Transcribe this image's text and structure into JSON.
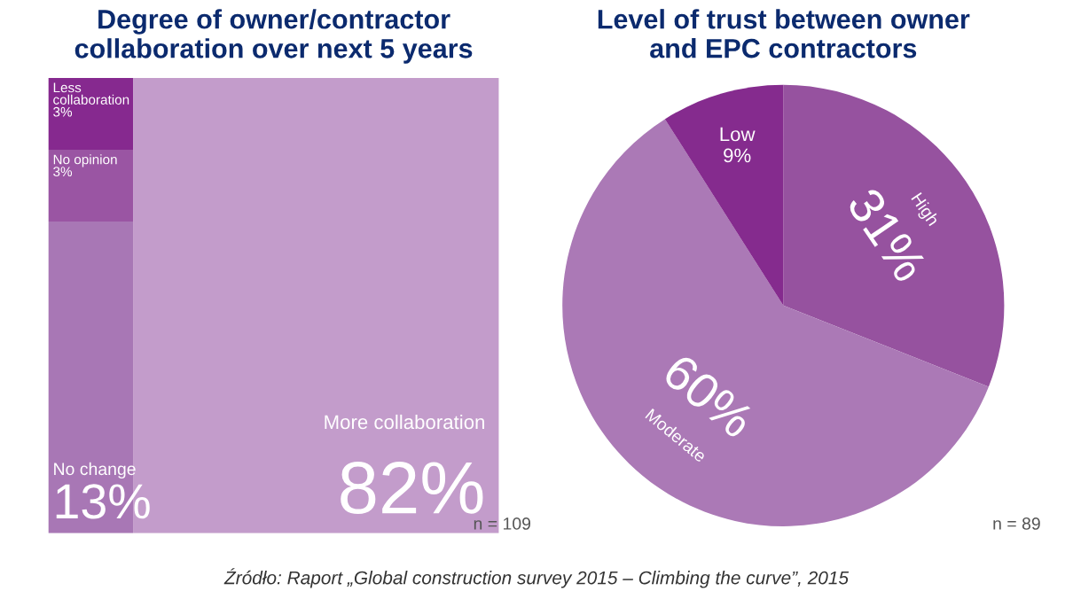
{
  "chart_data": [
    {
      "type": "other",
      "title": "Degree of owner/contractor\ncollaboration over next 5 years",
      "categories": [
        "Less collaboration",
        "No opinion",
        "No change",
        "More collaboration"
      ],
      "values": [
        3,
        3,
        13,
        82
      ],
      "value_labels": [
        "3%",
        "3%",
        "13%",
        "82%"
      ],
      "colors": [
        "#86298f",
        "#9a55a3",
        "#a877b5",
        "#c39ccb"
      ],
      "annotations": [
        "n = 109"
      ]
    },
    {
      "type": "pie",
      "title": "Level of trust between owner\nand EPC contractors",
      "categories": [
        "High",
        "Moderate",
        "Low"
      ],
      "values": [
        31,
        60,
        9
      ],
      "value_labels": [
        "31%",
        "60%",
        "9%"
      ],
      "colors": [
        "#96529f",
        "#ab79b6",
        "#852b8e"
      ],
      "annotations": [
        "n = 89",
        "Źródło: Raport „Global construction survey 2015 – Climbing the curve”, 2015"
      ]
    }
  ]
}
